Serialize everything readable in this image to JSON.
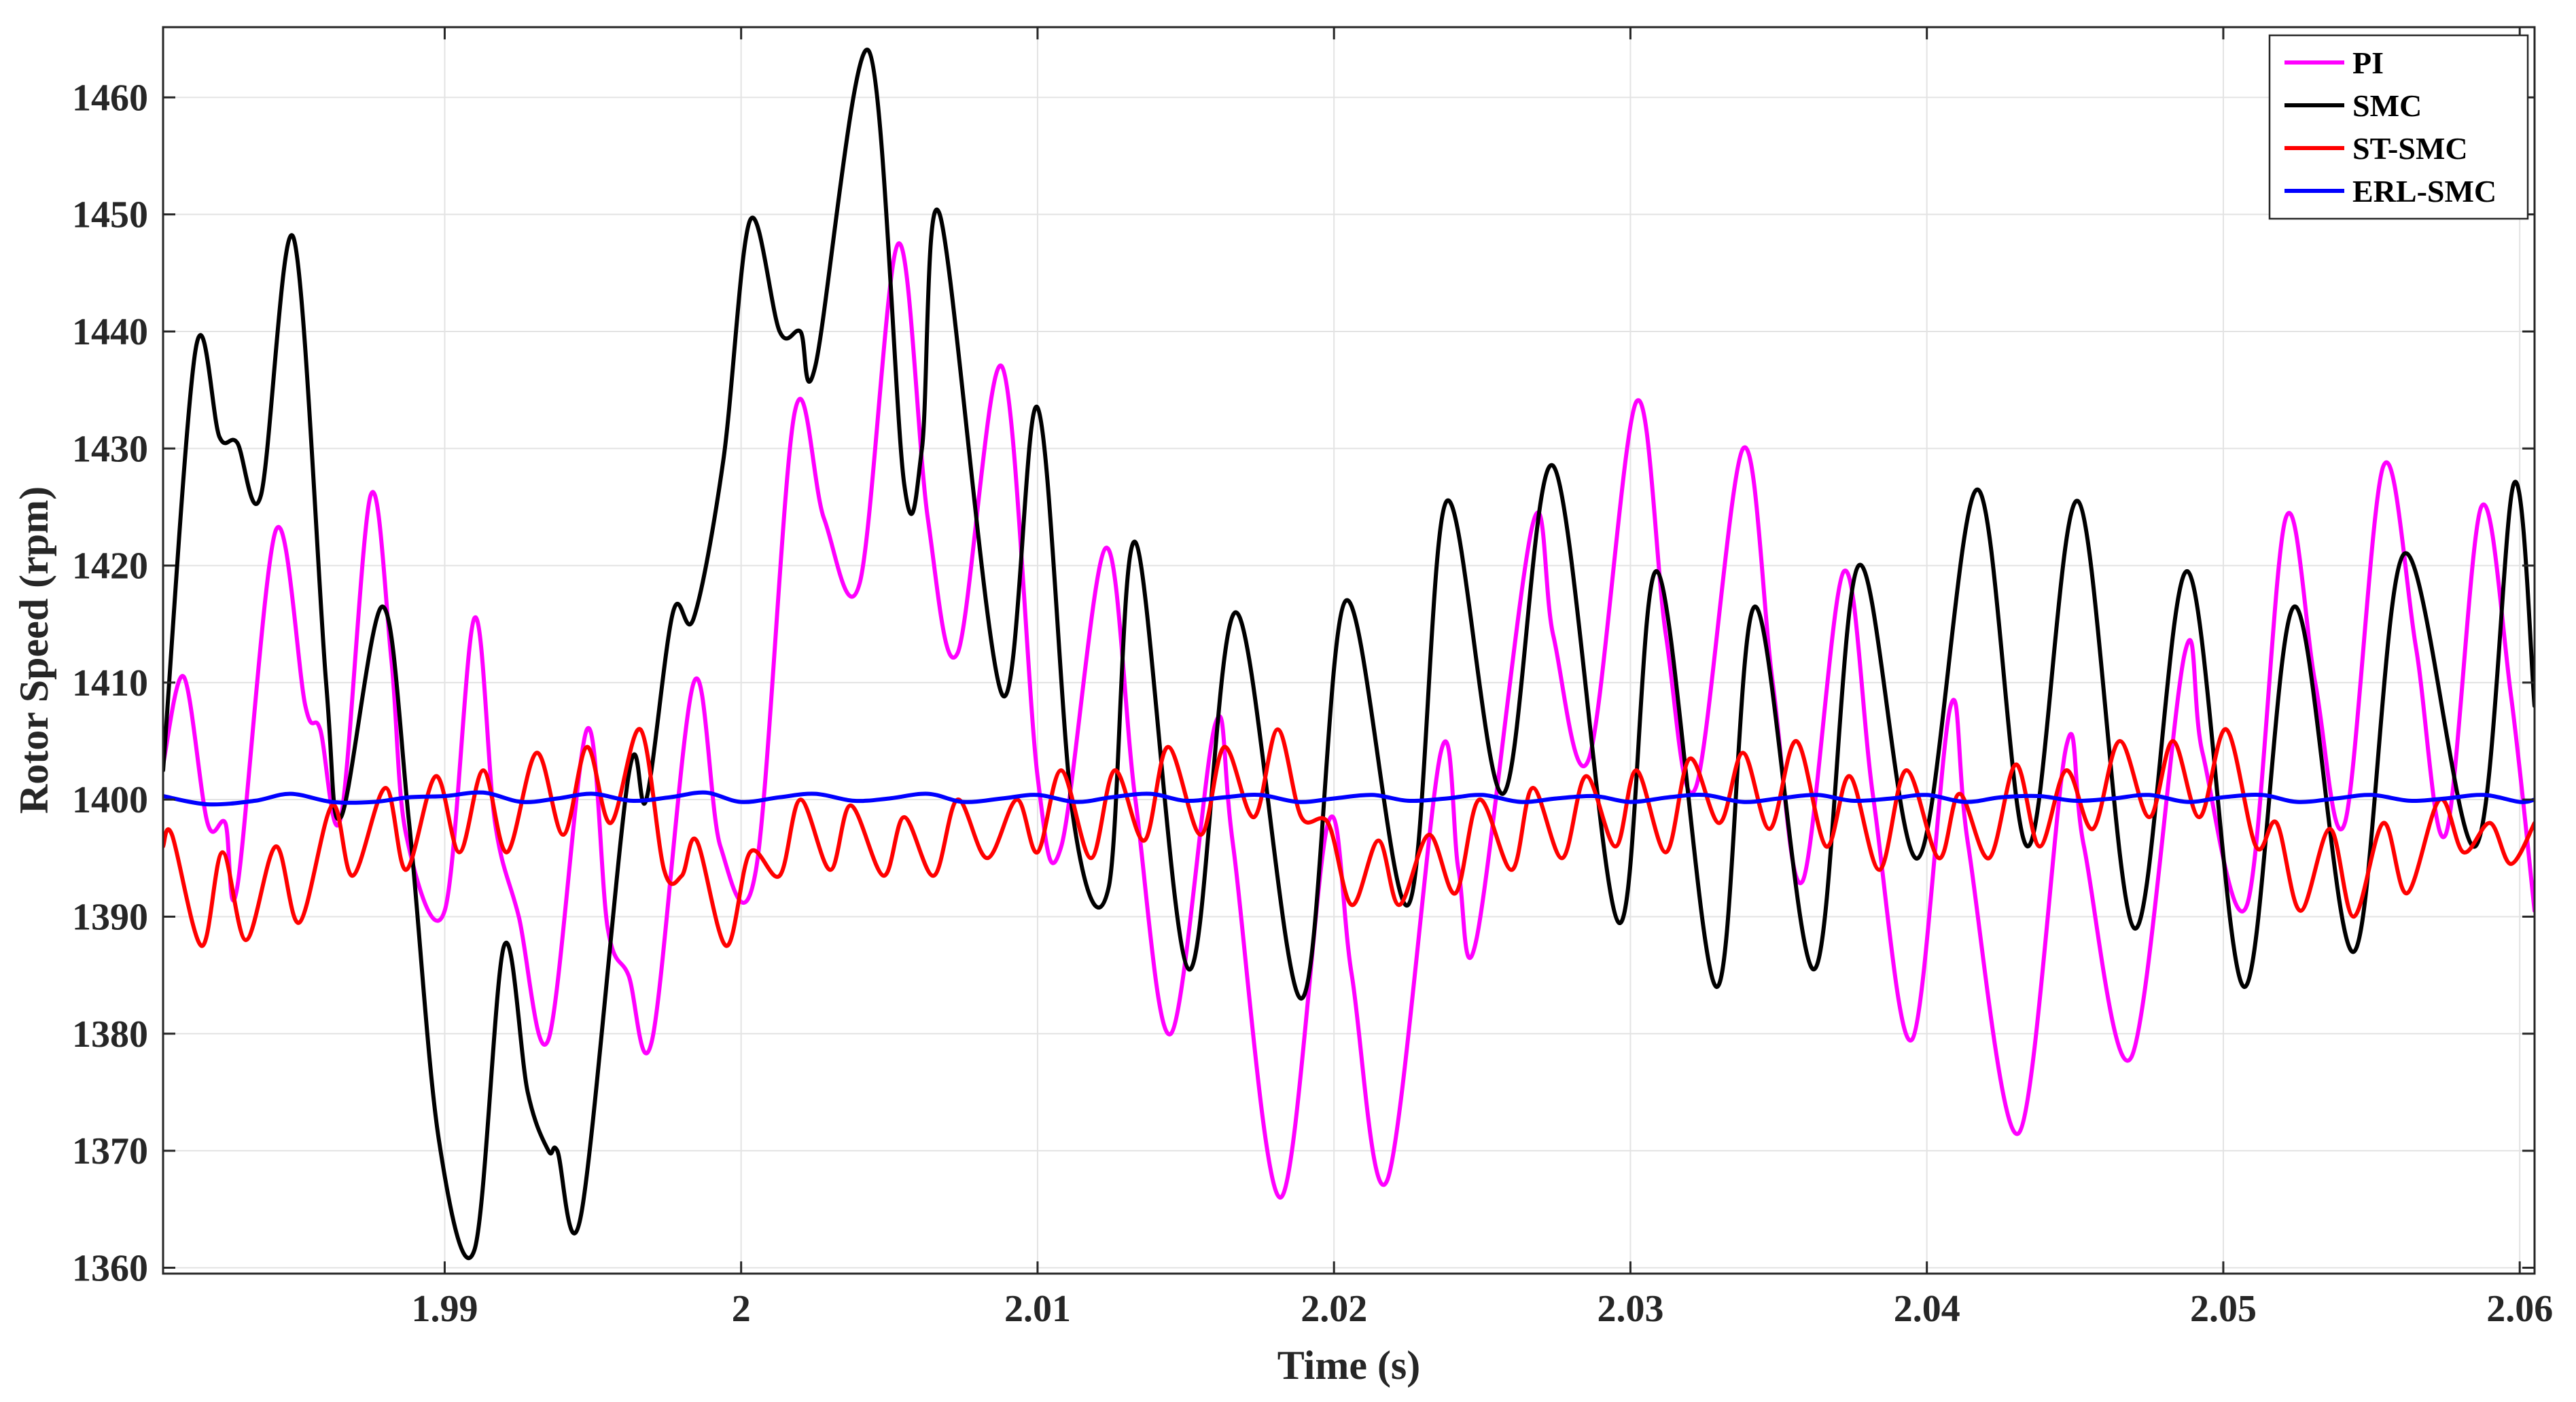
{
  "chart_data": {
    "type": "line",
    "xlabel": "Time (s)",
    "ylabel": "Rotor Speed (rpm)",
    "xlim": [
      1.9805,
      2.0605
    ],
    "ylim": [
      1359.5,
      1466
    ],
    "x_ticks": [
      1.99,
      2.0,
      2.01,
      2.02,
      2.03,
      2.04,
      2.05,
      2.06
    ],
    "x_tick_labels": [
      "1.99",
      "2",
      "2.01",
      "2.02",
      "2.03",
      "2.04",
      "2.05",
      "2.06"
    ],
    "y_ticks": [
      1360,
      1370,
      1380,
      1390,
      1400,
      1410,
      1420,
      1430,
      1440,
      1450,
      1460
    ],
    "y_tick_labels": [
      "1360",
      "1370",
      "1380",
      "1390",
      "1400",
      "1410",
      "1420",
      "1430",
      "1440",
      "1450",
      "1460"
    ],
    "grid": true,
    "legend_position": "top-right",
    "series": [
      {
        "name": "PI",
        "color": "#ff00ff",
        "points": [
          [
            1.9805,
            1403
          ],
          [
            1.9812,
            1410.5
          ],
          [
            1.982,
            1398
          ],
          [
            1.9826,
            1398
          ],
          [
            1.983,
            1392.5
          ],
          [
            1.9843,
            1423
          ],
          [
            1.9853,
            1408
          ],
          [
            1.9858,
            1406
          ],
          [
            1.9865,
            1398.5
          ],
          [
            1.9875,
            1426
          ],
          [
            1.9882,
            1412
          ],
          [
            1.9887,
            1397
          ],
          [
            1.99,
            1390.5
          ],
          [
            1.991,
            1415.5
          ],
          [
            1.9917,
            1398
          ],
          [
            1.9925,
            1390
          ],
          [
            1.9935,
            1379.5
          ],
          [
            1.9948,
            1406
          ],
          [
            1.9955,
            1389
          ],
          [
            1.9962,
            1385
          ],
          [
            1.997,
            1379.5
          ],
          [
            1.9984,
            1410
          ],
          [
            1.9993,
            1396
          ],
          [
            2.0005,
            1394
          ],
          [
            2.0018,
            1433
          ],
          [
            2.0028,
            1424
          ],
          [
            2.004,
            1418.5
          ],
          [
            2.0053,
            1447.5
          ],
          [
            2.0063,
            1424
          ],
          [
            2.0073,
            1412.5
          ],
          [
            2.0088,
            1437
          ],
          [
            2.01,
            1402
          ],
          [
            2.0108,
            1396
          ],
          [
            2.0123,
            1421.5
          ],
          [
            2.0133,
            1400
          ],
          [
            2.0145,
            1380
          ],
          [
            2.016,
            1406.5
          ],
          [
            2.0166,
            1396
          ],
          [
            2.0182,
            1366
          ],
          [
            2.0198,
            1398
          ],
          [
            2.0206,
            1385
          ],
          [
            2.0218,
            1367.5
          ],
          [
            2.0236,
            1404
          ],
          [
            2.0242,
            1394
          ],
          [
            2.0248,
            1388
          ],
          [
            2.0267,
            1423.5
          ],
          [
            2.0274,
            1414
          ],
          [
            2.0286,
            1403.5
          ],
          [
            2.0302,
            1434
          ],
          [
            2.0312,
            1414
          ],
          [
            2.0322,
            1401
          ],
          [
            2.0338,
            1430
          ],
          [
            2.0348,
            1410
          ],
          [
            2.0358,
            1393
          ],
          [
            2.0372,
            1419.5
          ],
          [
            2.0382,
            1400
          ],
          [
            2.0395,
            1379.5
          ],
          [
            2.0408,
            1408
          ],
          [
            2.0414,
            1396
          ],
          [
            2.0431,
            1371.5
          ],
          [
            2.0447,
            1404.5
          ],
          [
            2.0453,
            1396
          ],
          [
            2.0469,
            1378
          ],
          [
            2.0487,
            1412.5
          ],
          [
            2.0493,
            1404
          ],
          [
            2.0508,
            1391
          ],
          [
            2.0521,
            1424
          ],
          [
            2.0531,
            1410
          ],
          [
            2.0541,
            1398
          ],
          [
            2.0554,
            1428.5
          ],
          [
            2.0565,
            1413
          ],
          [
            2.0575,
            1397
          ],
          [
            2.0587,
            1425
          ],
          [
            2.0597,
            1409
          ],
          [
            2.0605,
            1390.5
          ]
        ]
      },
      {
        "name": "SMC",
        "color": "#000000",
        "points": [
          [
            1.9805,
            1402.5
          ],
          [
            1.9816,
            1438.5
          ],
          [
            1.9824,
            1431
          ],
          [
            1.983,
            1430.5
          ],
          [
            1.9838,
            1426
          ],
          [
            1.9849,
            1448
          ],
          [
            1.986,
            1410
          ],
          [
            1.9865,
            1398.5
          ],
          [
            1.9879,
            1416.5
          ],
          [
            1.9888,
            1398
          ],
          [
            1.9898,
            1371
          ],
          [
            1.991,
            1361.5
          ],
          [
            1.992,
            1387.5
          ],
          [
            1.9928,
            1375
          ],
          [
            1.9935,
            1370
          ],
          [
            1.9938,
            1370
          ],
          [
            1.9946,
            1364.5
          ],
          [
            1.9962,
            1402
          ],
          [
            1.9968,
            1400
          ],
          [
            1.9977,
            1416
          ],
          [
            1.9984,
            1415.5
          ],
          [
            1.9994,
            1429
          ],
          [
            2.0003,
            1449.5
          ],
          [
            2.0013,
            1440
          ],
          [
            2.002,
            1440
          ],
          [
            2.0025,
            1437
          ],
          [
            2.0043,
            1464
          ],
          [
            2.0055,
            1427
          ],
          [
            2.0061,
            1430
          ],
          [
            2.0067,
            1450
          ],
          [
            2.0088,
            1409
          ],
          [
            2.01,
            1433.5
          ],
          [
            2.0112,
            1398.5
          ],
          [
            2.0124,
            1392.5
          ],
          [
            2.0133,
            1422
          ],
          [
            2.0151,
            1385.5
          ],
          [
            2.0167,
            1416
          ],
          [
            2.0189,
            1383
          ],
          [
            2.0204,
            1417
          ],
          [
            2.0225,
            1391
          ],
          [
            2.0238,
            1425.5
          ],
          [
            2.0257,
            1400.5
          ],
          [
            2.0274,
            1428.5
          ],
          [
            2.0296,
            1389.5
          ],
          [
            2.0309,
            1419.5
          ],
          [
            2.0329,
            1384
          ],
          [
            2.0342,
            1416.5
          ],
          [
            2.0362,
            1385.5
          ],
          [
            2.0377,
            1420
          ],
          [
            2.0397,
            1395
          ],
          [
            2.0417,
            1426.5
          ],
          [
            2.0434,
            1396
          ],
          [
            2.0451,
            1425.5
          ],
          [
            2.047,
            1389
          ],
          [
            2.0488,
            1419.5
          ],
          [
            2.0507,
            1384
          ],
          [
            2.0524,
            1416.5
          ],
          [
            2.0544,
            1387
          ],
          [
            2.0561,
            1421
          ],
          [
            2.0585,
            1396
          ],
          [
            2.0598,
            1427
          ],
          [
            2.0605,
            1408
          ]
        ]
      },
      {
        "name": "ST-SMC",
        "color": "#ff0000",
        "points": [
          [
            1.9805,
            1396
          ],
          [
            1.9808,
            1397
          ],
          [
            1.9818,
            1387.5
          ],
          [
            1.9825,
            1395.5
          ],
          [
            1.9833,
            1388
          ],
          [
            1.9843,
            1396
          ],
          [
            1.9851,
            1389.5
          ],
          [
            1.9862,
            1399.5
          ],
          [
            1.9869,
            1393.5
          ],
          [
            1.988,
            1401
          ],
          [
            1.9887,
            1394
          ],
          [
            1.9897,
            1402
          ],
          [
            1.9905,
            1395.5
          ],
          [
            1.9913,
            1402.5
          ],
          [
            1.9921,
            1395.5
          ],
          [
            1.9931,
            1404
          ],
          [
            1.994,
            1397
          ],
          [
            1.9948,
            1404.5
          ],
          [
            1.9956,
            1398
          ],
          [
            1.9966,
            1406
          ],
          [
            1.9974,
            1394
          ],
          [
            1.998,
            1393.5
          ],
          [
            1.9985,
            1396.5
          ],
          [
            1.9995,
            1387.5
          ],
          [
            2.0003,
            1395.5
          ],
          [
            2.0013,
            1393.5
          ],
          [
            2.002,
            1400
          ],
          [
            2.003,
            1394
          ],
          [
            2.0037,
            1399.5
          ],
          [
            2.0048,
            1393.5
          ],
          [
            2.0055,
            1398.5
          ],
          [
            2.0065,
            1393.5
          ],
          [
            2.0073,
            1400
          ],
          [
            2.0083,
            1395
          ],
          [
            2.0093,
            1400
          ],
          [
            2.01,
            1395.5
          ],
          [
            2.0108,
            1402.5
          ],
          [
            2.0118,
            1395
          ],
          [
            2.0126,
            1402.5
          ],
          [
            2.0136,
            1396.5
          ],
          [
            2.0144,
            1404.5
          ],
          [
            2.0155,
            1397
          ],
          [
            2.0163,
            1404.5
          ],
          [
            2.0173,
            1398.5
          ],
          [
            2.0181,
            1406
          ],
          [
            2.0189,
            1398.5
          ],
          [
            2.0198,
            1398
          ],
          [
            2.0206,
            1391
          ],
          [
            2.0215,
            1396.5
          ],
          [
            2.0222,
            1391
          ],
          [
            2.0232,
            1397
          ],
          [
            2.0241,
            1392
          ],
          [
            2.0249,
            1400
          ],
          [
            2.026,
            1394
          ],
          [
            2.0267,
            1401
          ],
          [
            2.0277,
            1395
          ],
          [
            2.0285,
            1402
          ],
          [
            2.0295,
            1396
          ],
          [
            2.0302,
            1402.5
          ],
          [
            2.0312,
            1395.5
          ],
          [
            2.032,
            1403.5
          ],
          [
            2.033,
            1398
          ],
          [
            2.0338,
            1404
          ],
          [
            2.0347,
            1397.5
          ],
          [
            2.0356,
            1405
          ],
          [
            2.0366,
            1396
          ],
          [
            2.0374,
            1402
          ],
          [
            2.0384,
            1394
          ],
          [
            2.0393,
            1402.5
          ],
          [
            2.0404,
            1395
          ],
          [
            2.0411,
            1400.5
          ],
          [
            2.0421,
            1395
          ],
          [
            2.043,
            1403
          ],
          [
            2.0438,
            1396
          ],
          [
            2.0447,
            1402.5
          ],
          [
            2.0456,
            1397.5
          ],
          [
            2.0465,
            1405
          ],
          [
            2.0475,
            1398.5
          ],
          [
            2.0483,
            1405
          ],
          [
            2.0492,
            1398.5
          ],
          [
            2.0501,
            1406
          ],
          [
            2.0511,
            1396
          ],
          [
            2.0518,
            1398
          ],
          [
            2.0526,
            1390.5
          ],
          [
            2.0536,
            1397.5
          ],
          [
            2.0544,
            1390
          ],
          [
            2.0554,
            1398
          ],
          [
            2.0562,
            1392
          ],
          [
            2.0573,
            1400
          ],
          [
            2.0581,
            1395.5
          ],
          [
            2.059,
            1398
          ],
          [
            2.0597,
            1394.5
          ],
          [
            2.0605,
            1398
          ]
        ]
      },
      {
        "name": "ERL-SMC",
        "color": "#0000ff",
        "points": [
          [
            1.9805,
            1400.3
          ],
          [
            1.982,
            1399.6
          ],
          [
            1.9836,
            1399.9
          ],
          [
            1.9848,
            1400.5
          ],
          [
            1.9862,
            1399.8
          ],
          [
            1.9876,
            1399.8
          ],
          [
            1.9888,
            1400.2
          ],
          [
            1.99,
            1400.3
          ],
          [
            1.9913,
            1400.6
          ],
          [
            1.9926,
            1399.8
          ],
          [
            1.9938,
            1400.1
          ],
          [
            1.995,
            1400.5
          ],
          [
            1.9963,
            1399.9
          ],
          [
            1.9976,
            1400.2
          ],
          [
            1.9988,
            1400.6
          ],
          [
            2.0,
            1399.8
          ],
          [
            2.0013,
            1400.2
          ],
          [
            2.0025,
            1400.5
          ],
          [
            2.0038,
            1399.9
          ],
          [
            2.005,
            1400.1
          ],
          [
            2.0063,
            1400.5
          ],
          [
            2.0075,
            1399.8
          ],
          [
            2.0088,
            1400.1
          ],
          [
            2.01,
            1400.4
          ],
          [
            2.0113,
            1399.8
          ],
          [
            2.0125,
            1400.2
          ],
          [
            2.0138,
            1400.5
          ],
          [
            2.015,
            1399.9
          ],
          [
            2.0163,
            1400.2
          ],
          [
            2.0175,
            1400.4
          ],
          [
            2.0188,
            1399.8
          ],
          [
            2.02,
            1400.1
          ],
          [
            2.0213,
            1400.4
          ],
          [
            2.0225,
            1399.9
          ],
          [
            2.0238,
            1400.1
          ],
          [
            2.025,
            1400.4
          ],
          [
            2.0263,
            1399.8
          ],
          [
            2.0275,
            1400.1
          ],
          [
            2.0288,
            1400.3
          ],
          [
            2.03,
            1399.8
          ],
          [
            2.0313,
            1400.2
          ],
          [
            2.0325,
            1400.4
          ],
          [
            2.0338,
            1399.8
          ],
          [
            2.035,
            1400.1
          ],
          [
            2.0363,
            1400.4
          ],
          [
            2.0375,
            1399.9
          ],
          [
            2.0388,
            1400.1
          ],
          [
            2.04,
            1400.4
          ],
          [
            2.0413,
            1399.8
          ],
          [
            2.0425,
            1400.2
          ],
          [
            2.0438,
            1400.3
          ],
          [
            2.045,
            1399.9
          ],
          [
            2.0463,
            1400.1
          ],
          [
            2.0475,
            1400.4
          ],
          [
            2.0488,
            1399.8
          ],
          [
            2.05,
            1400.2
          ],
          [
            2.0513,
            1400.4
          ],
          [
            2.0525,
            1399.8
          ],
          [
            2.0538,
            1400.1
          ],
          [
            2.055,
            1400.4
          ],
          [
            2.0563,
            1399.9
          ],
          [
            2.0575,
            1400.1
          ],
          [
            2.0588,
            1400.4
          ],
          [
            2.06,
            1399.8
          ],
          [
            2.0605,
            1400
          ]
        ]
      }
    ]
  }
}
